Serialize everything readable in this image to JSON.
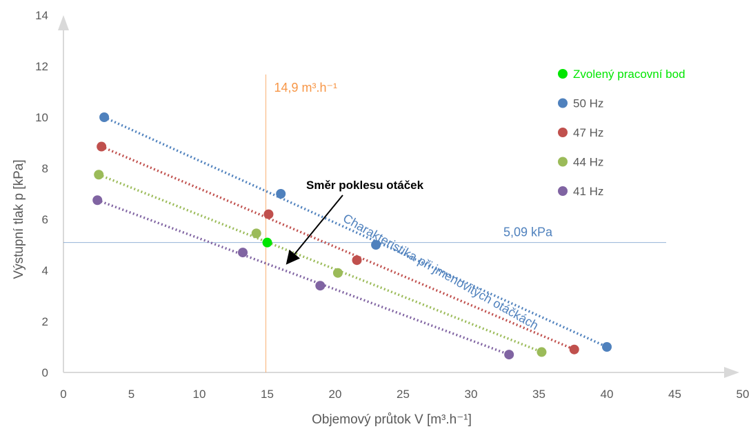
{
  "chart_data": {
    "type": "scatter",
    "xlabel": "Objemový průtok V [m³.h⁻¹]",
    "ylabel": "Výstupní tlak p [kPa]",
    "xlim": [
      0,
      50
    ],
    "ylim": [
      0,
      14
    ],
    "xticks": [
      0,
      5,
      10,
      15,
      20,
      25,
      30,
      35,
      40,
      45,
      50
    ],
    "yticks": [
      0,
      2,
      4,
      6,
      8,
      10,
      12,
      14
    ],
    "grid": false,
    "legend_position": "top-right",
    "series": [
      {
        "name": "Zvolený pracovní bod",
        "color": "#00E600",
        "points": [
          [
            15.0,
            5.09
          ]
        ],
        "line": false
      },
      {
        "name": "50 Hz",
        "color": "#4F81BD",
        "points": [
          [
            3.0,
            10.0
          ],
          [
            16.0,
            7.0
          ],
          [
            23.0,
            5.0
          ],
          [
            40.0,
            1.0
          ]
        ],
        "line": true
      },
      {
        "name": "47 Hz",
        "color": "#C0504D",
        "points": [
          [
            2.8,
            8.85
          ],
          [
            15.1,
            6.2
          ],
          [
            21.6,
            4.4
          ],
          [
            37.6,
            0.9
          ]
        ],
        "line": true
      },
      {
        "name": "44 Hz",
        "color": "#9BBB59",
        "points": [
          [
            2.6,
            7.75
          ],
          [
            14.2,
            5.45
          ],
          [
            20.2,
            3.9
          ],
          [
            35.2,
            0.8
          ]
        ],
        "line": true
      },
      {
        "name": "41 Hz",
        "color": "#8064A2",
        "points": [
          [
            2.5,
            6.75
          ],
          [
            13.2,
            4.7
          ],
          [
            18.9,
            3.4
          ],
          [
            32.8,
            0.7
          ]
        ],
        "line": true
      }
    ],
    "reference_lines": [
      {
        "orientation": "vertical",
        "value": 14.9,
        "label": "14,9 m³.h⁻¹",
        "color": "#F79646"
      },
      {
        "orientation": "horizontal",
        "value": 5.09,
        "label": "5,09 kPa",
        "color": "#4F81BD"
      }
    ],
    "annotations": [
      {
        "text": "Směr poklesu  otáček",
        "color": "#000000"
      },
      {
        "text": "Charakteristika při jmenovitých otáčkách",
        "color": "#4F81BD"
      }
    ]
  }
}
